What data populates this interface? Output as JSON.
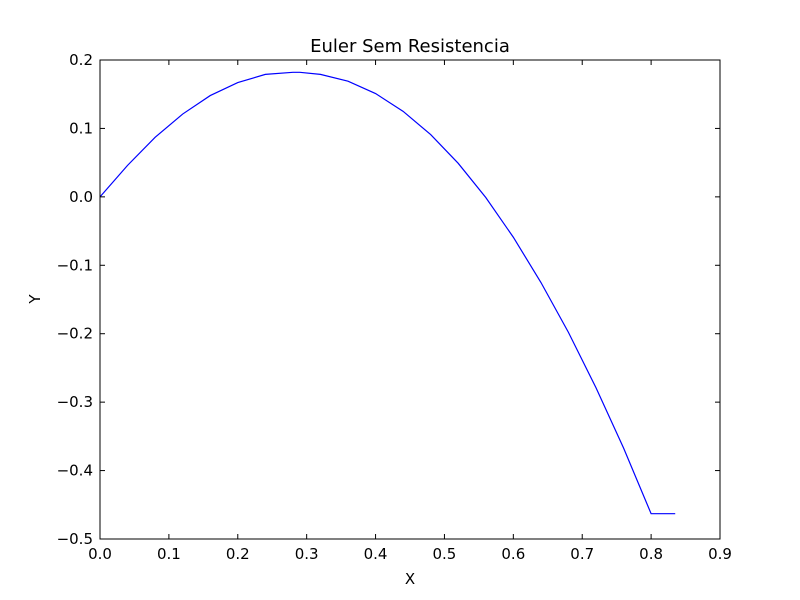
{
  "chart_data": {
    "type": "line",
    "title": "Euler Sem Resistencia",
    "xlabel": "X",
    "ylabel": "Y",
    "xlim": [
      0.0,
      0.9
    ],
    "ylim": [
      -0.5,
      0.2
    ],
    "x_ticks": [
      0.0,
      0.1,
      0.2,
      0.3,
      0.4,
      0.5,
      0.6,
      0.7,
      0.8,
      0.9
    ],
    "y_ticks": [
      0.2,
      0.1,
      0.0,
      -0.1,
      -0.2,
      -0.3,
      -0.4,
      -0.5
    ],
    "x_tick_labels": [
      "0.0",
      "0.1",
      "0.2",
      "0.3",
      "0.4",
      "0.5",
      "0.6",
      "0.7",
      "0.8",
      "0.9"
    ],
    "y_tick_labels": [
      "0.2",
      "0.1",
      "0.0",
      "−0.1",
      "−0.2",
      "−0.3",
      "−0.4",
      "−0.5"
    ],
    "grid": false,
    "line_color": "#0000ff",
    "series": [
      {
        "x": [
          0.0,
          0.04,
          0.08,
          0.12,
          0.16,
          0.2,
          0.24,
          0.28,
          0.29,
          0.32,
          0.36,
          0.4,
          0.44,
          0.48,
          0.52,
          0.56,
          0.6,
          0.64,
          0.68,
          0.72,
          0.76,
          0.8,
          0.835
        ],
        "y": [
          0.0,
          0.046,
          0.087,
          0.121,
          0.148,
          0.167,
          0.179,
          0.182,
          0.182,
          0.179,
          0.169,
          0.151,
          0.125,
          0.091,
          0.049,
          -0.001,
          -0.059,
          -0.125,
          -0.198,
          -0.279,
          -0.367,
          -0.463,
          -0.463
        ]
      }
    ]
  }
}
